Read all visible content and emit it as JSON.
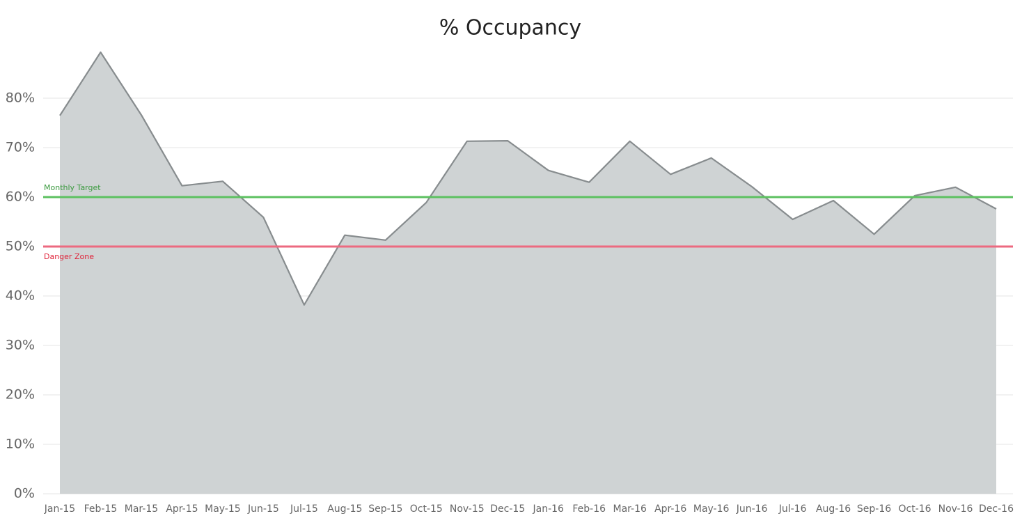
{
  "chart_data": {
    "type": "area",
    "title": "% Occupancy",
    "categories": [
      "Jan-15",
      "Feb-15",
      "Mar-15",
      "Apr-15",
      "May-15",
      "Jun-15",
      "Jul-15",
      "Aug-15",
      "Sep-15",
      "Oct-15",
      "Nov-15",
      "Dec-15",
      "Jan-16",
      "Feb-16",
      "Mar-16",
      "Apr-16",
      "May-16",
      "Jun-16",
      "Jul-16",
      "Aug-16",
      "Sep-16",
      "Oct-16",
      "Nov-16",
      "Dec-16"
    ],
    "values": [
      76.5,
      89.3,
      76.6,
      62.3,
      63.2,
      55.9,
      38.2,
      52.3,
      51.3,
      58.9,
      71.3,
      71.4,
      65.4,
      63.0,
      71.3,
      64.6,
      67.9,
      62.1,
      55.5,
      59.3,
      52.5,
      60.3,
      62.0,
      57.6
    ],
    "color": "#cfd3d4",
    "line_color": "#878c8e",
    "ylim": [
      0,
      92
    ],
    "yticks": [
      {
        "value": 0,
        "label": "0%"
      },
      {
        "value": 10,
        "label": "10%"
      },
      {
        "value": 20,
        "label": "20%"
      },
      {
        "value": 30,
        "label": "30%"
      },
      {
        "value": 40,
        "label": "40%"
      },
      {
        "value": 50,
        "label": "50%"
      },
      {
        "value": 60,
        "label": "60%"
      },
      {
        "value": 70,
        "label": "70%"
      },
      {
        "value": 80,
        "label": "80%"
      }
    ],
    "grid": true,
    "reference_lines": [
      {
        "value": 60,
        "label": "Monthly Target",
        "color": "#5cc160",
        "label_color": "#3a9a3e",
        "label_position": "above"
      },
      {
        "value": 50,
        "label": "Danger Zone",
        "color": "#ec6a80",
        "label_color": "#e0233a",
        "label_position": "below"
      }
    ]
  }
}
